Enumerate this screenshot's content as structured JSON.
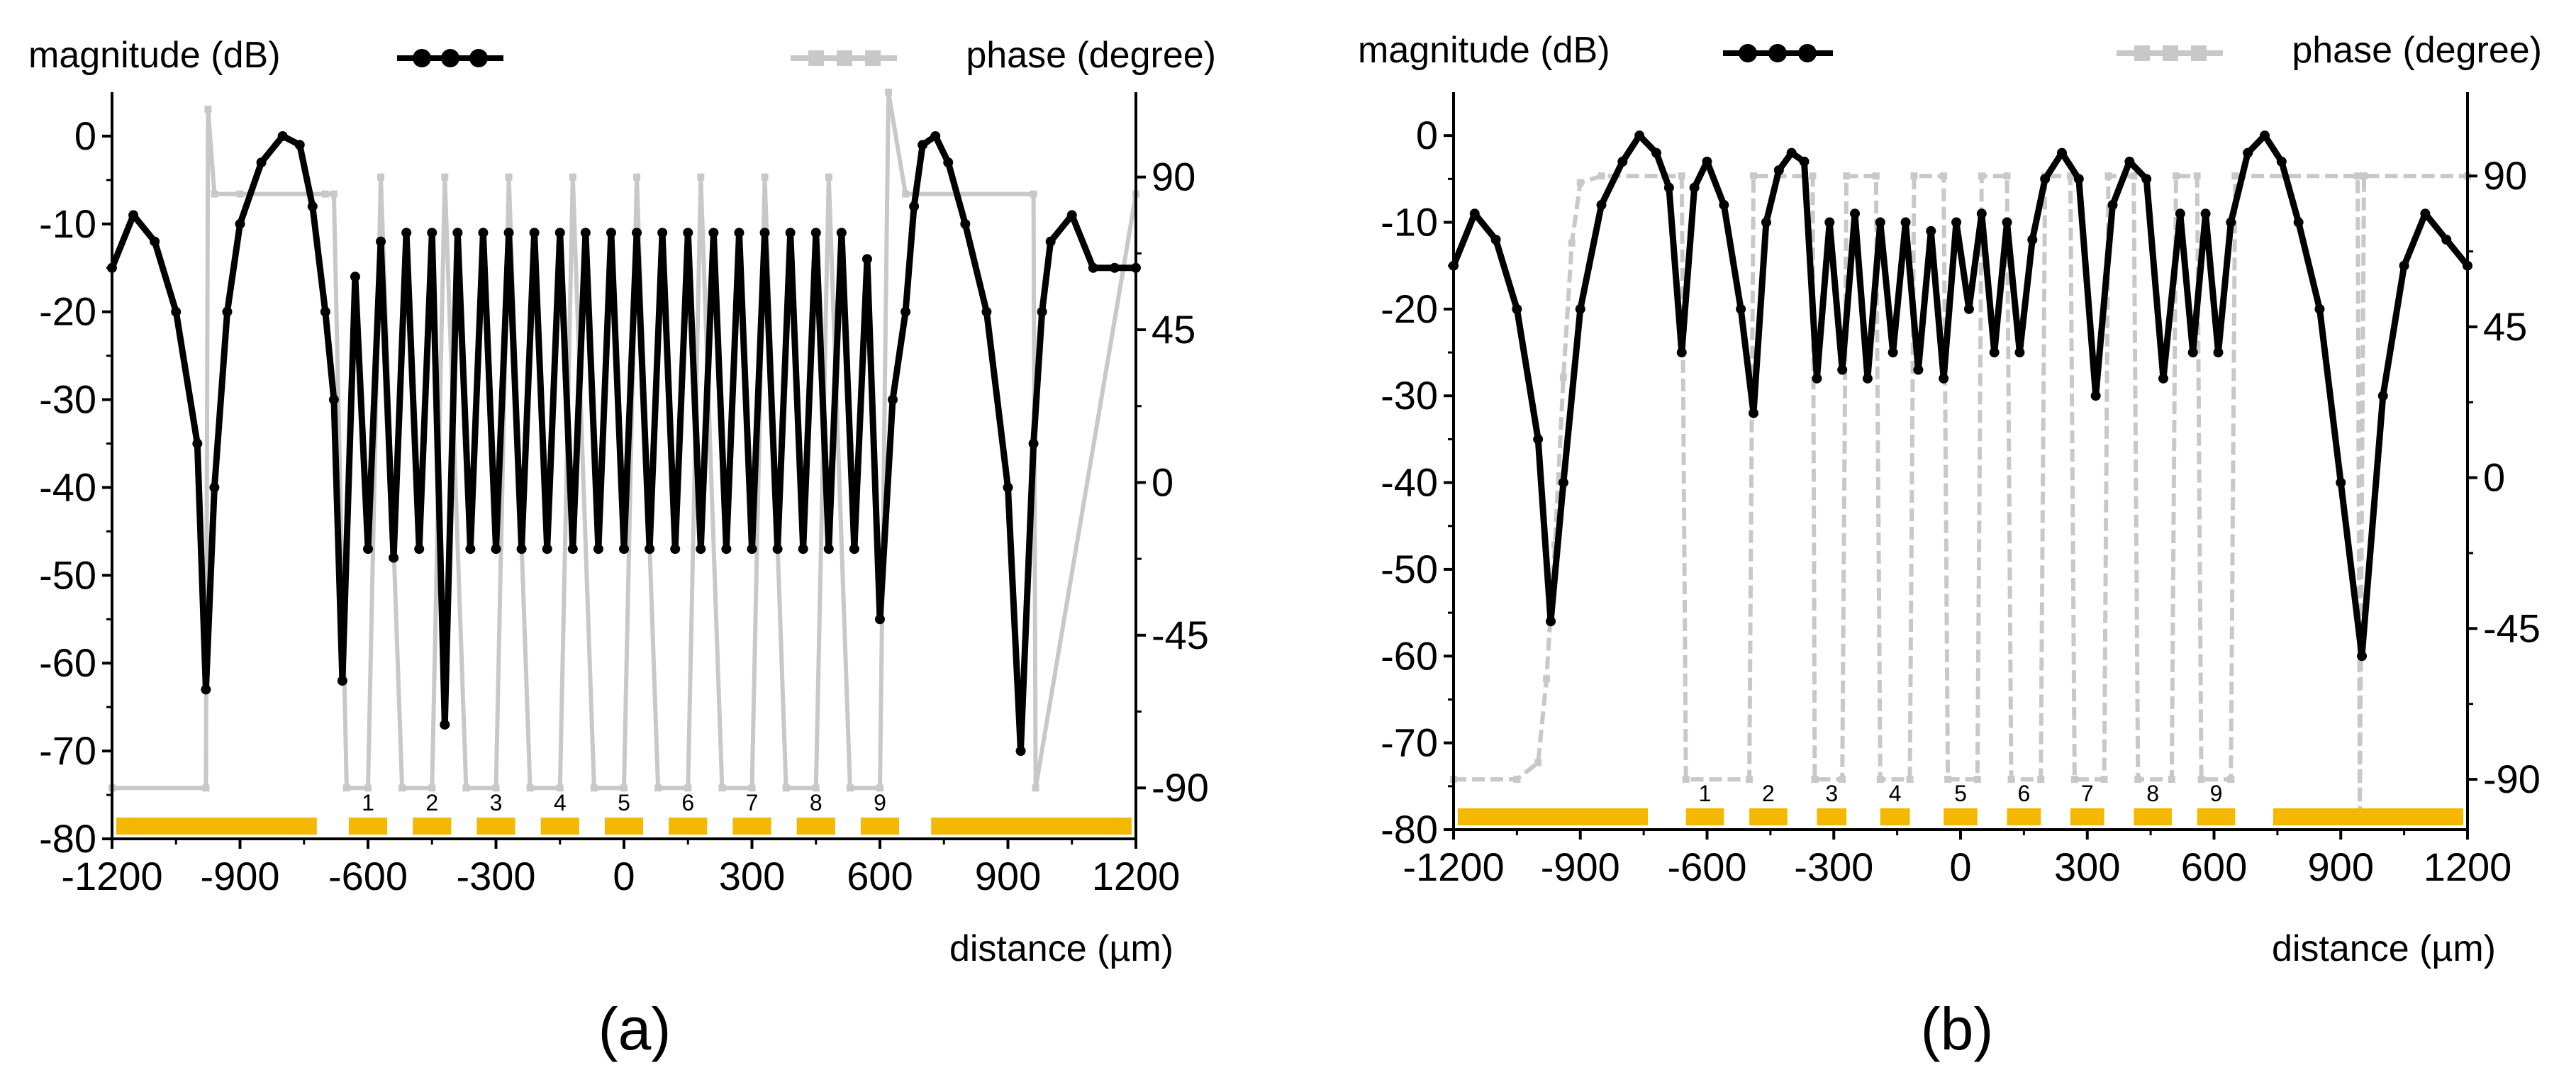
{
  "chart_data": [
    {
      "id": "a",
      "type": "line",
      "panel_label": "(a)",
      "legend": {
        "magnitude": "magnitude (dB)",
        "phase": "phase (degree)"
      },
      "xlabel": "distance (µm)",
      "xlim": [
        -1200,
        1200
      ],
      "ylim_left": [
        -80,
        5
      ],
      "ylim_right": [
        -105,
        115
      ],
      "x_ticks": [
        -1200,
        -900,
        -600,
        -300,
        0,
        300,
        600,
        900,
        1200
      ],
      "x_tick_labels": [
        "-1200",
        "-900",
        "-600",
        "-300",
        "0",
        "300",
        "600",
        "900",
        "1200"
      ],
      "left_ticks": [
        0,
        -10,
        -20,
        -30,
        -40,
        -50,
        -60,
        -70,
        -80
      ],
      "left_tick_labels": [
        "0",
        "-10",
        "-20",
        "-30",
        "-40",
        "-50",
        "-60",
        "-70",
        "-80"
      ],
      "right_ticks": [
        90,
        45,
        0,
        -45,
        -90
      ],
      "right_tick_labels": [
        "90",
        "45",
        "0",
        "-45",
        "-90"
      ],
      "electrodes": [
        {
          "label": "",
          "x0": -1190,
          "x1": -720
        },
        {
          "label": "1",
          "x0": -645,
          "x1": -555
        },
        {
          "label": "2",
          "x0": -495,
          "x1": -405
        },
        {
          "label": "3",
          "x0": -345,
          "x1": -255
        },
        {
          "label": "4",
          "x0": -195,
          "x1": -105
        },
        {
          "label": "5",
          "x0": -45,
          "x1": 45
        },
        {
          "label": "6",
          "x0": 105,
          "x1": 195
        },
        {
          "label": "7",
          "x0": 255,
          "x1": 345
        },
        {
          "label": "8",
          "x0": 405,
          "x1": 495
        },
        {
          "label": "9",
          "x0": 555,
          "x1": 645
        },
        {
          "label": "",
          "x0": 720,
          "x1": 1190
        }
      ],
      "magnitude_series": {
        "name": "magnitude (dB)",
        "x": [
          -1200,
          -1150,
          -1100,
          -1050,
          -1000,
          -980,
          -960,
          -930,
          -900,
          -850,
          -800,
          -760,
          -730,
          -700,
          -680,
          -660,
          -630,
          -600,
          -570,
          -540,
          -510,
          -480,
          -450,
          -420,
          -390,
          -360,
          -330,
          -300,
          -270,
          -240,
          -210,
          -180,
          -150,
          -120,
          -90,
          -60,
          -30,
          0,
          30,
          60,
          90,
          120,
          150,
          180,
          210,
          240,
          270,
          300,
          330,
          360,
          390,
          420,
          450,
          480,
          510,
          540,
          570,
          600,
          630,
          660,
          680,
          700,
          730,
          760,
          800,
          850,
          900,
          930,
          960,
          980,
          1000,
          1050,
          1100,
          1150,
          1200
        ],
        "values": [
          -15,
          -9,
          -12,
          -20,
          -35,
          -63,
          -40,
          -20,
          -10,
          -3,
          0,
          -1,
          -8,
          -20,
          -30,
          -62,
          -16,
          -47,
          -12,
          -48,
          -11,
          -47,
          -11,
          -67,
          -11,
          -47,
          -11,
          -47,
          -11,
          -47,
          -11,
          -47,
          -11,
          -47,
          -11,
          -47,
          -11,
          -47,
          -11,
          -47,
          -11,
          -47,
          -11,
          -47,
          -11,
          -47,
          -11,
          -47,
          -11,
          -47,
          -11,
          -47,
          -11,
          -47,
          -11,
          -47,
          -14,
          -55,
          -30,
          -20,
          -8,
          -1,
          0,
          -3,
          -10,
          -20,
          -40,
          -70,
          -35,
          -20,
          -12,
          -9,
          -15,
          -15,
          -15
        ]
      },
      "phase_series": {
        "name": "phase (degree)",
        "x": [
          -1200,
          -980,
          -975,
          -960,
          -900,
          -700,
          -680,
          -650,
          -600,
          -570,
          -520,
          -450,
          -420,
          -370,
          -300,
          -270,
          -220,
          -150,
          -120,
          -70,
          0,
          30,
          80,
          150,
          180,
          230,
          300,
          330,
          380,
          450,
          480,
          530,
          600,
          620,
          660,
          960,
          965,
          1200
        ],
        "values": [
          -90,
          -90,
          110,
          85,
          85,
          85,
          85,
          -90,
          -90,
          90,
          -90,
          -90,
          90,
          -90,
          -90,
          90,
          -90,
          -90,
          90,
          -90,
          -90,
          90,
          -90,
          -90,
          90,
          -90,
          -90,
          90,
          -90,
          -90,
          90,
          -90,
          -90,
          115,
          85,
          85,
          -90,
          85
        ]
      }
    },
    {
      "id": "b",
      "type": "line",
      "panel_label": "(b)",
      "legend": {
        "magnitude": "magnitude (dB)",
        "phase": "phase (degree)"
      },
      "xlabel": "distance (µm)",
      "xlim": [
        -1200,
        1200
      ],
      "ylim_left": [
        -80,
        5
      ],
      "ylim_right": [
        -105,
        115
      ],
      "x_ticks": [
        -1200,
        -900,
        -600,
        -300,
        0,
        300,
        600,
        900,
        1200
      ],
      "x_tick_labels": [
        "-1200",
        "-900",
        "-600",
        "-300",
        "0",
        "300",
        "600",
        "900",
        "1200"
      ],
      "left_ticks": [
        0,
        -10,
        -20,
        -30,
        -40,
        -50,
        -60,
        -70,
        -80
      ],
      "left_tick_labels": [
        "0",
        "-10",
        "-20",
        "-30",
        "-40",
        "-50",
        "-60",
        "-70",
        "-80"
      ],
      "right_ticks": [
        90,
        45,
        0,
        -45,
        -90
      ],
      "right_tick_labels": [
        "90",
        "45",
        "0",
        "-45",
        "-90"
      ],
      "electrodes": [
        {
          "label": "",
          "x0": -1190,
          "x1": -740
        },
        {
          "label": "1",
          "x0": -650,
          "x1": -560
        },
        {
          "label": "2",
          "x0": -500,
          "x1": -410
        },
        {
          "label": "3",
          "x0": -340,
          "x1": -270
        },
        {
          "label": "4",
          "x0": -190,
          "x1": -120
        },
        {
          "label": "5",
          "x0": -40,
          "x1": 40
        },
        {
          "label": "6",
          "x0": 110,
          "x1": 190
        },
        {
          "label": "7",
          "x0": 260,
          "x1": 340
        },
        {
          "label": "8",
          "x0": 410,
          "x1": 500
        },
        {
          "label": "9",
          "x0": 560,
          "x1": 650
        },
        {
          "label": "",
          "x0": 740,
          "x1": 1190
        }
      ],
      "magnitude_series": {
        "name": "magnitude (dB)",
        "x": [
          -1200,
          -1150,
          -1100,
          -1050,
          -1000,
          -970,
          -940,
          -900,
          -850,
          -800,
          -760,
          -720,
          -690,
          -660,
          -630,
          -600,
          -560,
          -520,
          -490,
          -460,
          -430,
          -400,
          -370,
          -340,
          -310,
          -280,
          -250,
          -220,
          -190,
          -160,
          -130,
          -100,
          -70,
          -40,
          -10,
          20,
          50,
          80,
          110,
          140,
          170,
          200,
          240,
          280,
          320,
          360,
          400,
          440,
          480,
          520,
          550,
          580,
          610,
          640,
          680,
          720,
          760,
          800,
          850,
          900,
          950,
          1000,
          1050,
          1100,
          1150,
          1200
        ],
        "values": [
          -15,
          -9,
          -12,
          -20,
          -35,
          -56,
          -40,
          -20,
          -8,
          -3,
          0,
          -2,
          -6,
          -25,
          -6,
          -3,
          -8,
          -20,
          -32,
          -10,
          -4,
          -2,
          -3,
          -28,
          -10,
          -27,
          -9,
          -28,
          -10,
          -25,
          -10,
          -27,
          -11,
          -28,
          -10,
          -20,
          -9,
          -25,
          -10,
          -25,
          -12,
          -5,
          -2,
          -5,
          -30,
          -8,
          -3,
          -5,
          -28,
          -9,
          -25,
          -9,
          -25,
          -10,
          -2,
          0,
          -3,
          -10,
          -20,
          -40,
          -60,
          -30,
          -15,
          -9,
          -12,
          -15
        ]
      },
      "phase_series": {
        "name": "phase (degree)",
        "x": [
          -1200,
          -1050,
          -1000,
          -980,
          -960,
          -940,
          -920,
          -900,
          -850,
          -700,
          -660,
          -650,
          -500,
          -490,
          -350,
          -345,
          -280,
          -270,
          -200,
          -190,
          -120,
          -110,
          -40,
          -30,
          40,
          50,
          110,
          120,
          190,
          200,
          260,
          270,
          340,
          350,
          410,
          420,
          500,
          510,
          560,
          570,
          640,
          650,
          940,
          945,
          955,
          1200
        ],
        "values": [
          -90,
          -90,
          -85,
          -60,
          -20,
          30,
          70,
          88,
          90,
          90,
          90,
          -90,
          -90,
          90,
          90,
          -90,
          -90,
          90,
          90,
          -90,
          -90,
          90,
          90,
          -90,
          -90,
          90,
          90,
          -90,
          -90,
          90,
          90,
          -90,
          -90,
          90,
          90,
          -90,
          -90,
          90,
          90,
          -90,
          -90,
          90,
          90,
          -100,
          90,
          90
        ]
      }
    }
  ]
}
